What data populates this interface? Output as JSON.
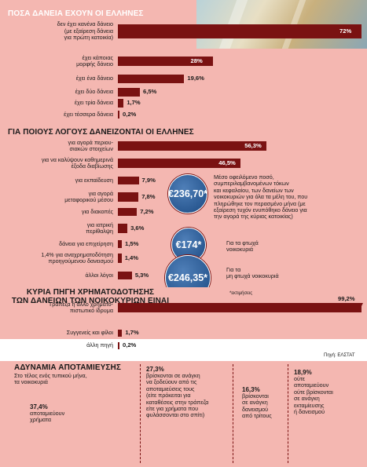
{
  "chart_data": [
    {
      "type": "bar",
      "title": "ΠΟΣΑ ΔΑΝΕΙΑ ΕΧΟΥΝ ΟΙ ΕΛΛΗΝΕΣ",
      "categories": [
        "δεν έχει κανένα δάνειο\n(με εξαίρεση δάνεια\nγια πρώτη κατοικία)",
        "έχει κάποιας\nμορφής δάνειο",
        "έχει ένα δάνειο",
        "έχει δύο δάνεια",
        "έχει τρία δάνεια",
        "έχει τέσσερα δάνεια"
      ],
      "values": [
        72,
        28,
        19.6,
        6.5,
        1.7,
        0.2
      ],
      "value_labels": [
        "72%",
        "28%",
        "19,6%",
        "6,5%",
        "1,7%",
        "0,2%"
      ],
      "xlim": [
        0,
        72
      ],
      "grid": false
    },
    {
      "type": "bar",
      "title": "ΓΙΑ ΠΟΙΟΥΣ ΛΟΓΟΥΣ ΔΑΝΕΙΖΟΝΤΑΙ ΟΙ ΕΛΛΗΝΕΣ",
      "categories": [
        "για αγορά περιου-\nσιακών στοιχείων",
        "για να καλύψουν καθημερινά\nέξοδα διαβίωσης",
        "για εκπαίδευση",
        "για αγορά\nμεταφορικού μέσου",
        "για διακοπές",
        "για ιατρική\nπερίθαλψη",
        "δάνεια για επιχείρηση",
        "1,4% για αναχρηματοδότηση\nπροηγούμενου δανεισμού",
        "άλλοι λόγοι"
      ],
      "values": [
        56.3,
        46.5,
        7.9,
        7.8,
        7.2,
        3.6,
        1.5,
        1.4,
        5.3
      ],
      "value_labels": [
        "56,3%",
        "46,5%",
        "7,9%",
        "7,8%",
        "7,2%",
        "3,6%",
        "1,5%",
        "1,4%",
        "5,3%"
      ],
      "xlim": [
        0,
        72
      ],
      "grid": false
    },
    {
      "type": "bar",
      "title": "ΚΥΡΙΑ ΠΗΓΗ ΧΡΗΜΑΤΟΔΟΤΗΣΗΣ\nΤΩΝ ΔΑΝΕΙΩΝ ΤΩΝ ΝΟΙΚΟΚΥΡΙΩΝ ΕΙΝΑΙ",
      "categories": [
        "Τράπεζα ή άλλο χρηματο-\nπιστωτικό ίδρυμα",
        "Συγγενείς και φίλοι",
        "άλλη πηγή"
      ],
      "values": [
        99.2,
        1.7,
        0.2
      ],
      "value_labels": [
        "99,2%",
        "1,7%",
        "0,2%"
      ],
      "xlim": [
        0,
        99.2
      ],
      "grid": false
    }
  ],
  "bubbles": [
    {
      "amount": "€236,70*",
      "text": "Μέσο οφειλόμενο ποσό,\nσυμπεριλαμβανομένων τόκων\nκαι κεφαλαίου, των δανείων των\nνοικοκυριών για όλα τα μέλη του, που\nπληρώθηκε τον περασμένο μήνα (με\nεξαίρεση τυχόν ενυπόθηκο δάνειο για\nτην αγορά της κύριας κατοικίας)"
    },
    {
      "amount": "€174*",
      "text": "Για τα φτωχά\nνοικοκυριά"
    },
    {
      "amount": "€246,35*",
      "text": "Για τα\nμη φτωχά νοικοκυριά"
    }
  ],
  "footnote": "*εκτιμήσεις",
  "source": "Πηγή: ΕΛΣΤΑΤ",
  "bottom": {
    "title": "ΑΔΥΝΑΜΙΑ ΑΠΟΤΑΜΙΕΥΣΗΣ",
    "subtitle": "Στο τέλος ενός τυπικού μήνα,\nτα νοικοκυριά",
    "boxes": [
      {
        "pct": "37,4%",
        "text": "αποταμιεύουν\nχρήματα"
      },
      {
        "pct": "27,3%",
        "text": "βρίσκονται σε ανάγκη\nνα ξοδεύουν από τις\nαποταμιεύσεις τους\n(είτε πρόκειται για\nκαταθέσεις στην τράπεζα\nείτε για χρήματα που\nφυλάσσονται στο σπίτι)"
      },
      {
        "pct": "16,3%",
        "text": "βρίσκονται\nσε ανάγκη\nδανεισμού\nαπό τρίτους"
      },
      {
        "pct": "18,9%",
        "text": "ούτε\nαποταμιεύουν\nούτε βρίσκονται\nσε ανάγκη\nεκταμίευσης\nή δανεισμού"
      }
    ]
  },
  "colors": {
    "bar": "#7a1212",
    "panel": "#f4b7b1",
    "bubble": "#2b5a93"
  }
}
